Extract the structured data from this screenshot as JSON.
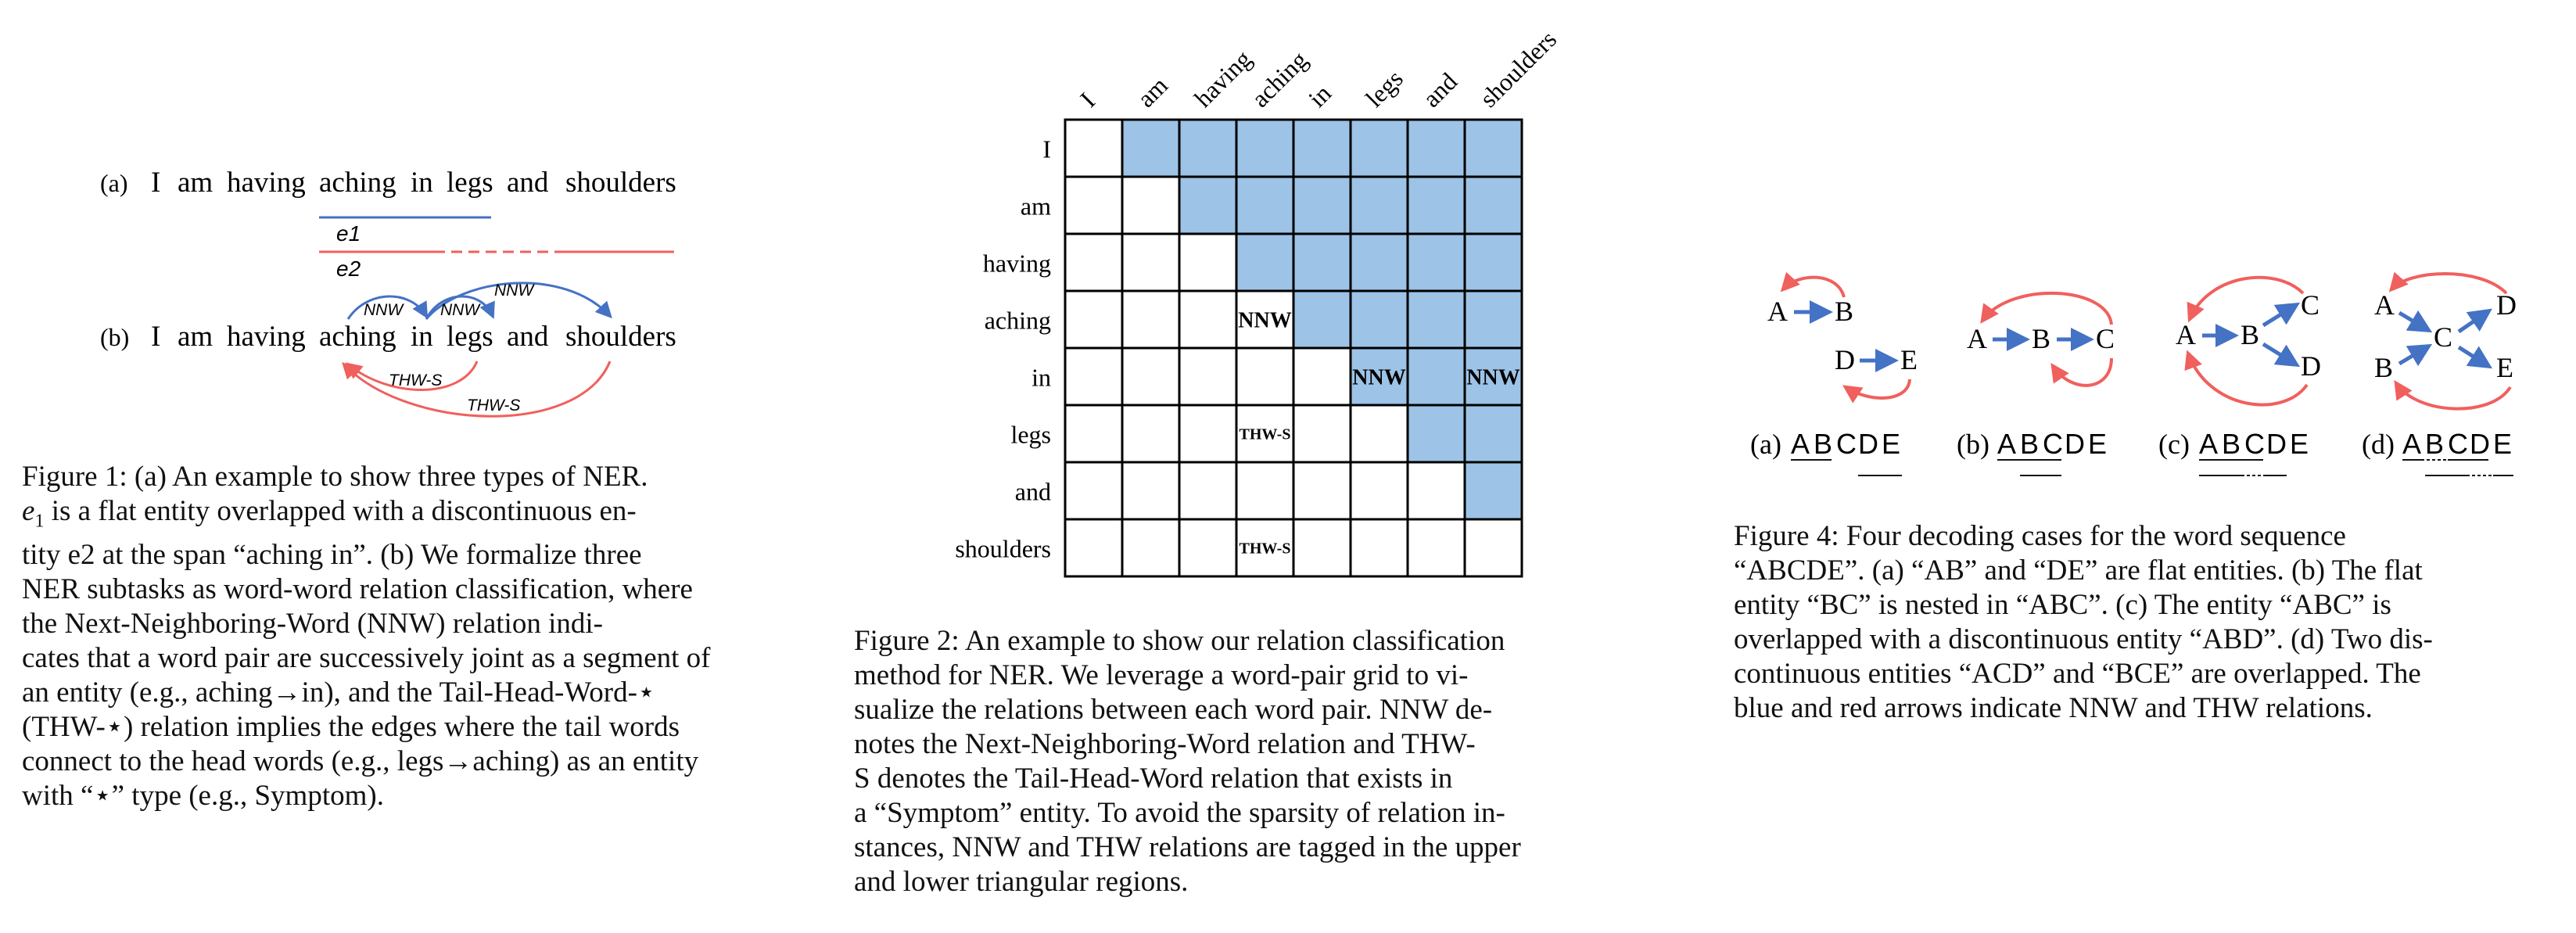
{
  "figure1": {
    "label_a": "(a)",
    "label_b": "(b)",
    "words": [
      "I",
      "am",
      "having",
      "aching",
      "in",
      "legs",
      "and",
      "shoulders"
    ],
    "entity_labels": [
      "e1",
      "e2"
    ],
    "arc_nnw": [
      "NNW",
      "NNW",
      "NNW"
    ],
    "arc_thw": [
      "THW-S",
      "THW-S"
    ],
    "caption_lines": [
      "Figure 1: (a) An example to show three types of NER.",
      "is a flat entity overlapped with a discontinuous en-",
      "tity e2 at the span “aching in”. (b) We formalize three",
      "NER subtasks as word-word relation classification, where",
      "the Next-Neighboring-Word (NNW) relation indi-",
      "cates that a word pair are successively joint as a segment of",
      "an entity (e.g., aching→in), and the Tail-Head-Word-⋆",
      "(THW-⋆) relation implies the edges where the tail words",
      "connect to the head words (e.g., legs→aching) as an entity",
      "with “⋆” type (e.g., Symptom)."
    ]
  },
  "figure2": {
    "words": [
      "I",
      "am",
      "having",
      "aching",
      "in",
      "legs",
      "and",
      "shoulders"
    ],
    "cells": [
      {
        "row": 3,
        "col": 3,
        "label": "NNW"
      },
      {
        "row": 4,
        "col": 5,
        "label": "NNW"
      },
      {
        "row": 4,
        "col": 7,
        "label": "NNW"
      },
      {
        "row": 5,
        "col": 3,
        "label": "THW-S"
      },
      {
        "row": 7,
        "col": 3,
        "label": "THW-S"
      }
    ],
    "caption_lines": [
      "Figure 2: An example to show our relation classification",
      "method for NER. We leverage a word-pair grid to vi-",
      "sualize the relations between each word pair. NNW de-",
      "notes the Next-Neighboring-Word relation and THW-",
      "S denotes the Tail-Head-Word relation that exists in",
      "a “Symptom” entity. To avoid the sparsity of relation in-",
      "stances, NNW and THW relations are tagged in the upper",
      "and lower triangular regions."
    ]
  },
  "figure4": {
    "panels": [
      {
        "label": "(a)",
        "sequence": [
          "A",
          "B",
          "C",
          "D",
          "E"
        ]
      },
      {
        "label": "(b)",
        "sequence": [
          "A",
          "B",
          "C",
          "D",
          "E"
        ]
      },
      {
        "label": "(c)",
        "sequence": [
          "A",
          "B",
          "C",
          "D",
          "E"
        ]
      },
      {
        "label": "(d)",
        "sequence": [
          "A",
          "B",
          "C",
          "D",
          "E"
        ]
      }
    ],
    "colors": {
      "nnw": "#4472c4",
      "thw": "#f0605d"
    },
    "caption_lines": [
      "Figure 4: Four decoding cases for the word sequence",
      "“ABCDE”. (a) “AB” and “DE” are flat entities. (b) The flat",
      "entity “BC” is nested in “ABC”. (c) The entity “ABC” is",
      "overlapped with a discontinuous entity “ABD”. (d) Two dis-",
      "continuous entities “ACD” and “BCE” are overlapped. The",
      "blue and red arrows indicate NNW and THW relations."
    ]
  }
}
